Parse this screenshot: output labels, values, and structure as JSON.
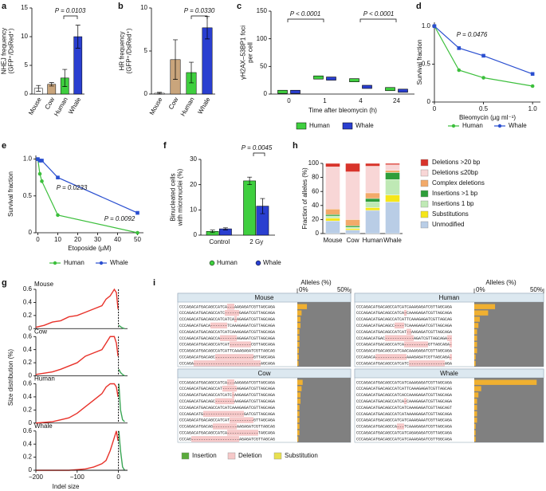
{
  "chart_data": [
    {
      "type": "bar",
      "panel": "a",
      "ylabel": [
        "NHEJ frequency",
        "(GFP⁺/DsRed⁺)"
      ],
      "categories": [
        "Mouse",
        "Cow",
        "Human",
        "Whale"
      ],
      "values": [
        1.0,
        1.7,
        2.8,
        10.0
      ],
      "errors": [
        0.5,
        0.3,
        1.5,
        2.0
      ],
      "colors": [
        "#ffffff",
        "#c9a57c",
        "#3fcf3f",
        "#2a3fd0"
      ],
      "ylim": [
        0,
        15
      ],
      "yticks": [
        0,
        5,
        10,
        15
      ],
      "annotations": [
        "P = 0.0103"
      ]
    },
    {
      "type": "bar",
      "panel": "b",
      "ylabel": [
        "HR frequency",
        "(GFP⁺/DsRed⁺)"
      ],
      "categories": [
        "Mouse",
        "Cow",
        "Human",
        "Whale"
      ],
      "values": [
        0.1,
        4.0,
        2.5,
        7.7
      ],
      "errors": [
        0.1,
        2.3,
        1.2,
        1.3
      ],
      "colors": [
        "#ffffff",
        "#c9a57c",
        "#3fcf3f",
        "#2a3fd0"
      ],
      "ylim": [
        0,
        10
      ],
      "yticks": [
        0,
        5,
        10
      ],
      "annotations": [
        "P = 0.0330"
      ]
    },
    {
      "type": "strip",
      "panel": "c",
      "ylabel": [
        "γH2AX–53BP1 foci",
        "per cell"
      ],
      "xlabel": "Time after bleomycin (h)",
      "categories": [
        "0",
        "1",
        "4",
        "24"
      ],
      "series": [
        {
          "name": "Human",
          "color": "#3fcf3f",
          "values": [
            4,
            30,
            25,
            9
          ]
        },
        {
          "name": "Whale",
          "color": "#2a3fd0",
          "values": [
            4,
            28,
            13,
            6
          ]
        }
      ],
      "ylim": [
        0,
        150
      ],
      "yticks": [
        0,
        50,
        100,
        150
      ],
      "annotations": [
        "P < 0.0001",
        "P < 0.0001"
      ]
    },
    {
      "type": "line",
      "panel": "d",
      "ylabel": [
        "Survival fraction"
      ],
      "xlabel": "Bleomycin (µg ml⁻¹)",
      "x": [
        0,
        0.25,
        0.5,
        1.0
      ],
      "series": [
        {
          "name": "Human",
          "color": "#3cbf3c",
          "values": [
            1.0,
            0.42,
            0.32,
            0.21
          ]
        },
        {
          "name": "Whale",
          "color": "#2a4fd0",
          "values": [
            1.0,
            0.71,
            0.61,
            0.37
          ]
        }
      ],
      "xlim": [
        0,
        1.08
      ],
      "xticks": [
        0,
        0.5,
        {
          "value": 1.0,
          "label": "1.0"
        }
      ],
      "ylim": [
        0,
        1.05
      ],
      "yticks": [
        0,
        0.5,
        {
          "value": 1.0,
          "label": "1.0"
        }
      ],
      "annotations": [
        "P = 0.0476"
      ]
    },
    {
      "type": "line",
      "panel": "e",
      "ylabel": [
        "Survival fraction"
      ],
      "xlabel": "Etoposide (µM)",
      "x": [
        0,
        1,
        2,
        10,
        50
      ],
      "series": [
        {
          "name": "Human",
          "color": "#3cbf3c",
          "values": [
            1.0,
            0.8,
            0.7,
            0.24,
            0.0
          ]
        },
        {
          "name": "Whale",
          "color": "#2a4fd0",
          "values": [
            1.0,
            0.98,
            0.98,
            0.75,
            0.27
          ]
        }
      ],
      "xlim": [
        -1,
        53
      ],
      "xticks": [
        0,
        10,
        20,
        30,
        40,
        50
      ],
      "ylim": [
        0,
        1.05
      ],
      "yticks": [
        0,
        0.5,
        {
          "value": 1.0,
          "label": "1.0"
        }
      ],
      "annotations": [
        "P = 0.0233",
        "P = 0.0092"
      ]
    },
    {
      "type": "bar",
      "panel": "f",
      "ylabel": [
        "Binucleated cells",
        "with micronuclei (%)"
      ],
      "categories": [
        "Control",
        "2 Gy"
      ],
      "series": [
        {
          "name": "Human",
          "color": "#3fcf3f",
          "values": [
            1.5,
            21.5
          ],
          "errors": [
            0.5,
            1.5
          ]
        },
        {
          "name": "Whale",
          "color": "#2a3fd0",
          "values": [
            2.5,
            11.5
          ],
          "errors": [
            0.4,
            3.0
          ]
        }
      ],
      "ylim": [
        0,
        30
      ],
      "yticks": [
        0,
        10,
        20,
        30
      ],
      "annotations": [
        "P = 0.0045"
      ]
    },
    {
      "type": "stacked_bar",
      "panel": "h",
      "ylabel": [
        "Fraction of alleles (%)"
      ],
      "categories": [
        "Mouse",
        "Cow",
        "Human",
        "Whale"
      ],
      "series": [
        {
          "name": "Unmodified",
          "color": "#b9cde6",
          "values": [
            18,
            5,
            33,
            45
          ]
        },
        {
          "name": "Substitutions",
          "color": "#f5e61a",
          "values": [
            4,
            2,
            4,
            10
          ]
        },
        {
          "name": "Insertions 1 bp",
          "color": "#bfe9b5",
          "values": [
            3,
            2,
            8,
            22
          ]
        },
        {
          "name": "Insertions >1 bp",
          "color": "#2e9e3a",
          "values": [
            2,
            2,
            5,
            10
          ]
        },
        {
          "name": "Complex deletions",
          "color": "#f2aa6a",
          "values": [
            8,
            9,
            8,
            3
          ]
        },
        {
          "name": "Deletions ≤20bp",
          "color": "#f8d6d6",
          "values": [
            60,
            68,
            38,
            8
          ]
        },
        {
          "name": "Deletions >20 bp",
          "color": "#d8342b",
          "values": [
            5,
            12,
            4,
            2
          ]
        }
      ],
      "ylim": [
        0,
        100
      ],
      "yticks": [
        0,
        20,
        40,
        60,
        80,
        100
      ]
    },
    {
      "type": "indel",
      "panel": "g",
      "ylabel": [
        "Size distribution (%)"
      ],
      "xlabel": "Indel size",
      "colors": [
        "#e8322a",
        "#3aa655"
      ],
      "xlim": [
        -200,
        22
      ],
      "xticks": [
        {
          "value": -200,
          "label": "−200"
        },
        {
          "value": -100,
          "label": "−100"
        },
        0
      ],
      "ylim": [
        0,
        0.6
      ],
      "yticks": [
        0,
        0.2,
        0.4,
        0.6
      ],
      "subplots": [
        {
          "title": "Mouse",
          "deletions": {
            "x": [
              -200,
              -180,
              -160,
              -140,
              -120,
              -100,
              -80,
              -60,
              -40,
              -30,
              -20,
              -10,
              -5,
              -1
            ],
            "values": [
              0.02,
              0.05,
              0.1,
              0.12,
              0.18,
              0.2,
              0.25,
              0.3,
              0.35,
              0.45,
              0.5,
              0.6,
              0.55,
              0.3
            ]
          },
          "insertions": {
            "x": [
              1,
              5,
              10,
              15
            ],
            "values": [
              0.05,
              0.03,
              0.01,
              0
            ]
          }
        },
        {
          "title": "Cow",
          "deletions": {
            "x": [
              -200,
              -180,
              -160,
              -140,
              -120,
              -100,
              -80,
              -60,
              -40,
              -30,
              -20,
              -10,
              -5,
              -1
            ],
            "values": [
              0.02,
              0.04,
              0.06,
              0.1,
              0.15,
              0.2,
              0.3,
              0.35,
              0.4,
              0.5,
              0.6,
              0.6,
              0.5,
              0.3
            ]
          },
          "insertions": {
            "x": [
              1,
              5,
              10,
              15
            ],
            "values": [
              0.1,
              0.05,
              0.02,
              0
            ]
          }
        },
        {
          "title": "Human",
          "deletions": {
            "x": [
              -200,
              -180,
              -160,
              -140,
              -120,
              -100,
              -80,
              -60,
              -40,
              -30,
              -20,
              -10,
              -5,
              -1
            ],
            "values": [
              0,
              0.01,
              0.02,
              0.05,
              0.08,
              0.15,
              0.25,
              0.35,
              0.45,
              0.55,
              0.6,
              0.6,
              0.55,
              0.4
            ]
          },
          "insertions": {
            "x": [
              1,
              5,
              10,
              15
            ],
            "values": [
              0.6,
              0.2,
              0.05,
              0.02
            ]
          }
        },
        {
          "title": "Whale",
          "deletions": {
            "x": [
              -200,
              -180,
              -160,
              -140,
              -120,
              -100,
              -80,
              -60,
              -40,
              -30,
              -20,
              -10,
              -5,
              -1
            ],
            "values": [
              0,
              0,
              0,
              0,
              0,
              0.01,
              0.02,
              0.05,
              0.1,
              0.15,
              0.3,
              0.5,
              0.6,
              0.45
            ]
          },
          "insertions": {
            "x": [
              1,
              5,
              10,
              15
            ],
            "values": [
              0.6,
              0.3,
              0.05,
              0
            ]
          }
        }
      ]
    },
    {
      "type": "alignment",
      "panel": "i",
      "xlabel": "Alleles (%)",
      "xlim": [
        0,
        50
      ],
      "xticks": [
        {
          "value": 0,
          "label": "0%"
        },
        {
          "value": 50,
          "label": "50%"
        }
      ],
      "bar_color": "#f0b030",
      "blocks": [
        {
          "title": "Mouse",
          "rows": [
            {
              "sequence": "CCCAGACATGACAGCCATCA---AAGAGATCGTTAGCAGA",
              "value": 9
            },
            {
              "sequence": "CCCAGACATGACAGCCATC------GAGATCGTTAGCAGA",
              "value": 4
            },
            {
              "sequence": "CCCAGACATGACAGCCATCATCA-AGAGATCGTTAGCAGA",
              "value": 3
            },
            {
              "sequence": "CCCAGACATGACA-------TCAAAGAGATCGTTAGCAGA",
              "value": 3
            },
            {
              "sequence": "CCCAGACATGACAGCCATCATCAAAGAGATCGTTAGCAGA",
              "value": 2
            },
            {
              "sequence": "CCCAGACATGACAGCCA-------AGAGATCGTTAGCAGA",
              "value": 2
            },
            {
              "sequence": "CCCAGACATGACAGCCATCAT---------CGTTAGCAGA",
              "value": 2
            },
            {
              "sequence": "CCCAGACATGACAGCCATCATTCAAAGAGATCGTTAGCAG",
              "value": 1.5
            },
            {
              "sequence": "CCCAGACATGACAGC----------------GTTAGCAGA",
              "value": 1.5
            },
            {
              "sequence": "CCCAGA----------------------------AGCAGA",
              "value": 1.2
            }
          ]
        },
        {
          "title": "Human",
          "rows": [
            {
              "sequence": "CCCAGACATGACAGCCATCATCAAAGAGATCGTTAGCAGA",
              "value": 15
            },
            {
              "sequence": "CCCAGACATGACAGCCATCA-CAAAGAGATCGTTAGCAGA",
              "value": 10
            },
            {
              "sequence": "CCCAGACATGACAGCCATCATTCAAAGAGATCGTTAGCAG",
              "value": 4
            },
            {
              "sequence": "CCCAGACATGACAGCC----TCAAAGAGATCGTTAGCAGA",
              "value": 3
            },
            {
              "sequence": "CCCAGACATGACAGCCATCAT--AAGAGATCGTTAGCAGA",
              "value": 2
            },
            {
              "sequence": "CCCAGACATGAC------------AGATCGTTAGCAGA--",
              "value": 2
            },
            {
              "sequence": "CCCAGACATGACAGCCATCA----------GTTAGCAGA-",
              "value": 2
            },
            {
              "sequence": "CCCAGACATGACAGCCATCAACAAAGAGATCGTTAGCAGA",
              "value": 2
            },
            {
              "sequence": "CCCAGACA-------------AAAGAGATCGTTAGCAGA-",
              "value": 1
            },
            {
              "sequence": "CCCAGACATGACAGCCATCATC---------------AGA",
              "value": 1
            }
          ]
        },
        {
          "title": "Cow",
          "rows": [
            {
              "sequence": "CCCAGACATGACAGCCATCA---AAGAGATCGTTAGCAGA",
              "value": 5
            },
            {
              "sequence": "CCCAGACATGACAGCCAT------AGAGATCGTTAGCAGA",
              "value": 4
            },
            {
              "sequence": "CCCAGACATGACAGCCATCATC-AAGAGATCGTTAGCAGA",
              "value": 3
            },
            {
              "sequence": "CCCAGACATGACAGC--------AAGAGATCGTTAGCAGA",
              "value": 3
            },
            {
              "sequence": "CCCAGACATGACAGCCATCATCAAAGAGATCGTTAGCAGA",
              "value": 2
            },
            {
              "sequence": "CCCAGACATG-----------------GATCGTTAGCAGA",
              "value": 2
            },
            {
              "sequence": "CCCAGACATGACAGCCATCAT----------GTTAGCAGA",
              "value": 2
            },
            {
              "sequence": "CCCAGACATGACAG----------AAGAGATCGTTAGCAG",
              "value": 2
            },
            {
              "sequence": "CCCAGACATGACAGCCATCA-------------TAGCAGA",
              "value": 2
            },
            {
              "sequence": "CCCAG--------------------AGAGATCGTTAGCAG",
              "value": 1
            }
          ]
        },
        {
          "title": "Whale",
          "rows": [
            {
              "sequence": "CCCAGACATGACAGCCATCATCAAAGAGATCGTTAGCAGA",
              "value": 45
            },
            {
              "sequence": "CCCAGACATGACAGCCATCATTCAAAGAGATCGTTAGCAG",
              "value": 5
            },
            {
              "sequence": "CCCAGACATGACAGCCATCACCAAAGAGATCGTTAGCAGA",
              "value": 3
            },
            {
              "sequence": "CCCAGACATGACAGCCATCA-CAAAGAGATCGTTAGCAGA",
              "value": 2
            },
            {
              "sequence": "CCCAGACATGACAGCCATCATCAAAGAGATCGTTAGCAGT",
              "value": 2
            },
            {
              "sequence": "CCCAGACATGACAGCCATCATAAAAGAGATCGTTAGCAGA",
              "value": 2
            },
            {
              "sequence": "CCCAGACATGACAGCCATCATCAAAGAAATCGTTAGCAGA",
              "value": 2
            },
            {
              "sequence": "CCCAGACATGACAGCCA---TCAAAGAGATCGTTAGCAGA",
              "value": 1
            },
            {
              "sequence": "CCCAGACATGACAGCCATCATCAGAGAGATCGTTAGCAGA",
              "value": 1
            },
            {
              "sequence": "CCCAGACATGACAGCCATCATCAAAGAGATCGTTGGCAGA",
              "value": 1
            }
          ]
        }
      ],
      "legend": [
        {
          "name": "Insertion",
          "color": "#5aab3c"
        },
        {
          "name": "Deletion",
          "color": "#f6c9c9"
        },
        {
          "name": "Substitution",
          "color": "#e8e050"
        }
      ]
    }
  ]
}
